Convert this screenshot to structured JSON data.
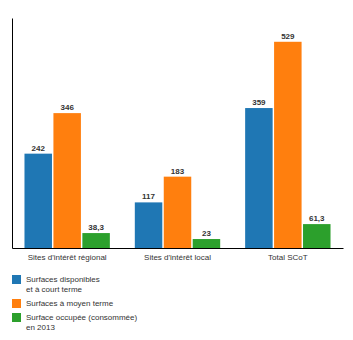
{
  "chart_data": {
    "type": "bar",
    "categories": [
      "Sites d'intérêt régional",
      "Sites d'intérêt local",
      "Total SCoT"
    ],
    "series": [
      {
        "name": "Surfaces disponibles\net à court terme",
        "values": [
          242,
          117,
          359
        ],
        "value_labels": [
          "242",
          "117",
          "359"
        ]
      },
      {
        "name": "Surfaces à moyen terme",
        "values": [
          346,
          183,
          529
        ],
        "value_labels": [
          "346",
          "183",
          "529"
        ]
      },
      {
        "name": "Surface occupée (consommée)\nen 2013",
        "values": [
          38.3,
          23,
          61.3
        ],
        "value_labels": [
          "38,3",
          "23",
          "61,3"
        ]
      }
    ],
    "ylim": [
      0,
      590
    ],
    "grid": false,
    "legend": "bottom",
    "data_labels": true,
    "tick_labels": "x"
  }
}
